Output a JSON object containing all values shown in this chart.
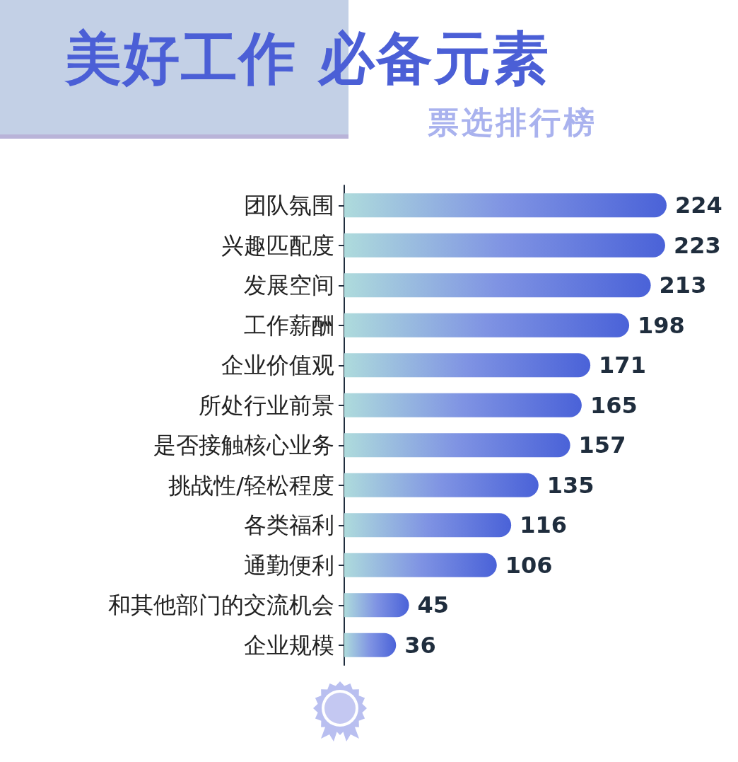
{
  "chart_data": {
    "type": "bar",
    "orientation": "horizontal",
    "title": "美好工作 必备元素",
    "subtitle": "票选排行榜",
    "categories": [
      "团队氛围",
      "兴趣匹配度",
      "发展空间",
      "工作薪酬",
      "企业价值观",
      "所处行业前景",
      "是否接触核心业务",
      "挑战性/轻松程度",
      "各类福利",
      "通勤便利",
      "和其他部门的交流机会",
      "企业规模"
    ],
    "values": [
      224,
      223,
      213,
      198,
      171,
      165,
      157,
      135,
      116,
      106,
      45,
      36
    ],
    "color": "#4a62d8",
    "data_labels": true
  }
}
